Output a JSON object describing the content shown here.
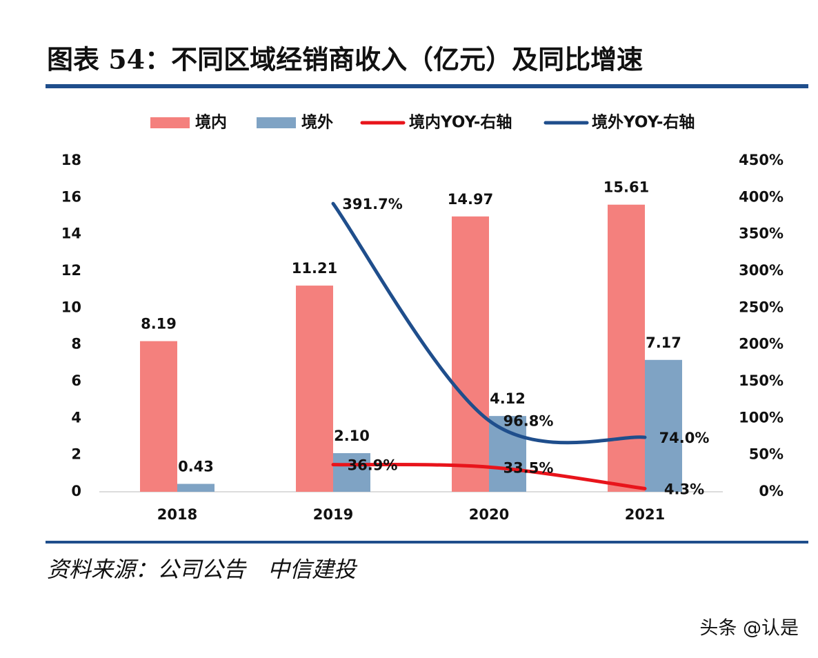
{
  "title": "图表 54：不同区域经销商收入（亿元）及同比增速",
  "source": "资料来源：公司公告　中信建投",
  "watermark": "头条 @认是",
  "chart_data": {
    "type": "bar",
    "categories": [
      "2018",
      "2019",
      "2020",
      "2021"
    ],
    "series": [
      {
        "name": "境内",
        "type": "bar",
        "color": "#f4807d",
        "values": [
          8.19,
          11.21,
          14.97,
          15.61
        ],
        "value_labels": [
          "8.19",
          "11.21",
          "14.97",
          "15.61"
        ]
      },
      {
        "name": "境外",
        "type": "bar",
        "color": "#7fa3c4",
        "values": [
          0.43,
          2.1,
          4.12,
          7.17
        ],
        "value_labels": [
          "0.43",
          "2.10",
          "4.12",
          "7.17"
        ]
      },
      {
        "name": "境内YOY-右轴",
        "type": "line",
        "axis": "y2",
        "color": "#e8141b",
        "values": [
          null,
          36.9,
          33.5,
          4.3
        ],
        "value_labels": [
          null,
          "36.9%",
          "33.5%",
          "4.3%"
        ]
      },
      {
        "name": "境外YOY-右轴",
        "type": "line",
        "axis": "y2",
        "color": "#1f4e8c",
        "values": [
          null,
          391.7,
          96.8,
          74.0
        ],
        "value_labels": [
          null,
          "391.7%",
          "96.8%",
          "74.0%"
        ]
      }
    ],
    "ylim": [
      0,
      18
    ],
    "yticks": [
      0,
      2,
      4,
      6,
      8,
      10,
      12,
      14,
      16,
      18
    ],
    "y2lim": [
      0,
      450
    ],
    "y2ticks": [
      {
        "value": 0,
        "label": "0%"
      },
      {
        "value": 50,
        "label": "50%"
      },
      {
        "value": 100,
        "label": "100%"
      },
      {
        "value": 150,
        "label": "150%"
      },
      {
        "value": 200,
        "label": "200%"
      },
      {
        "value": 250,
        "label": "250%"
      },
      {
        "value": 300,
        "label": "300%"
      },
      {
        "value": 350,
        "label": "350%"
      },
      {
        "value": 400,
        "label": "400%"
      },
      {
        "value": 450,
        "label": "450%"
      }
    ]
  }
}
